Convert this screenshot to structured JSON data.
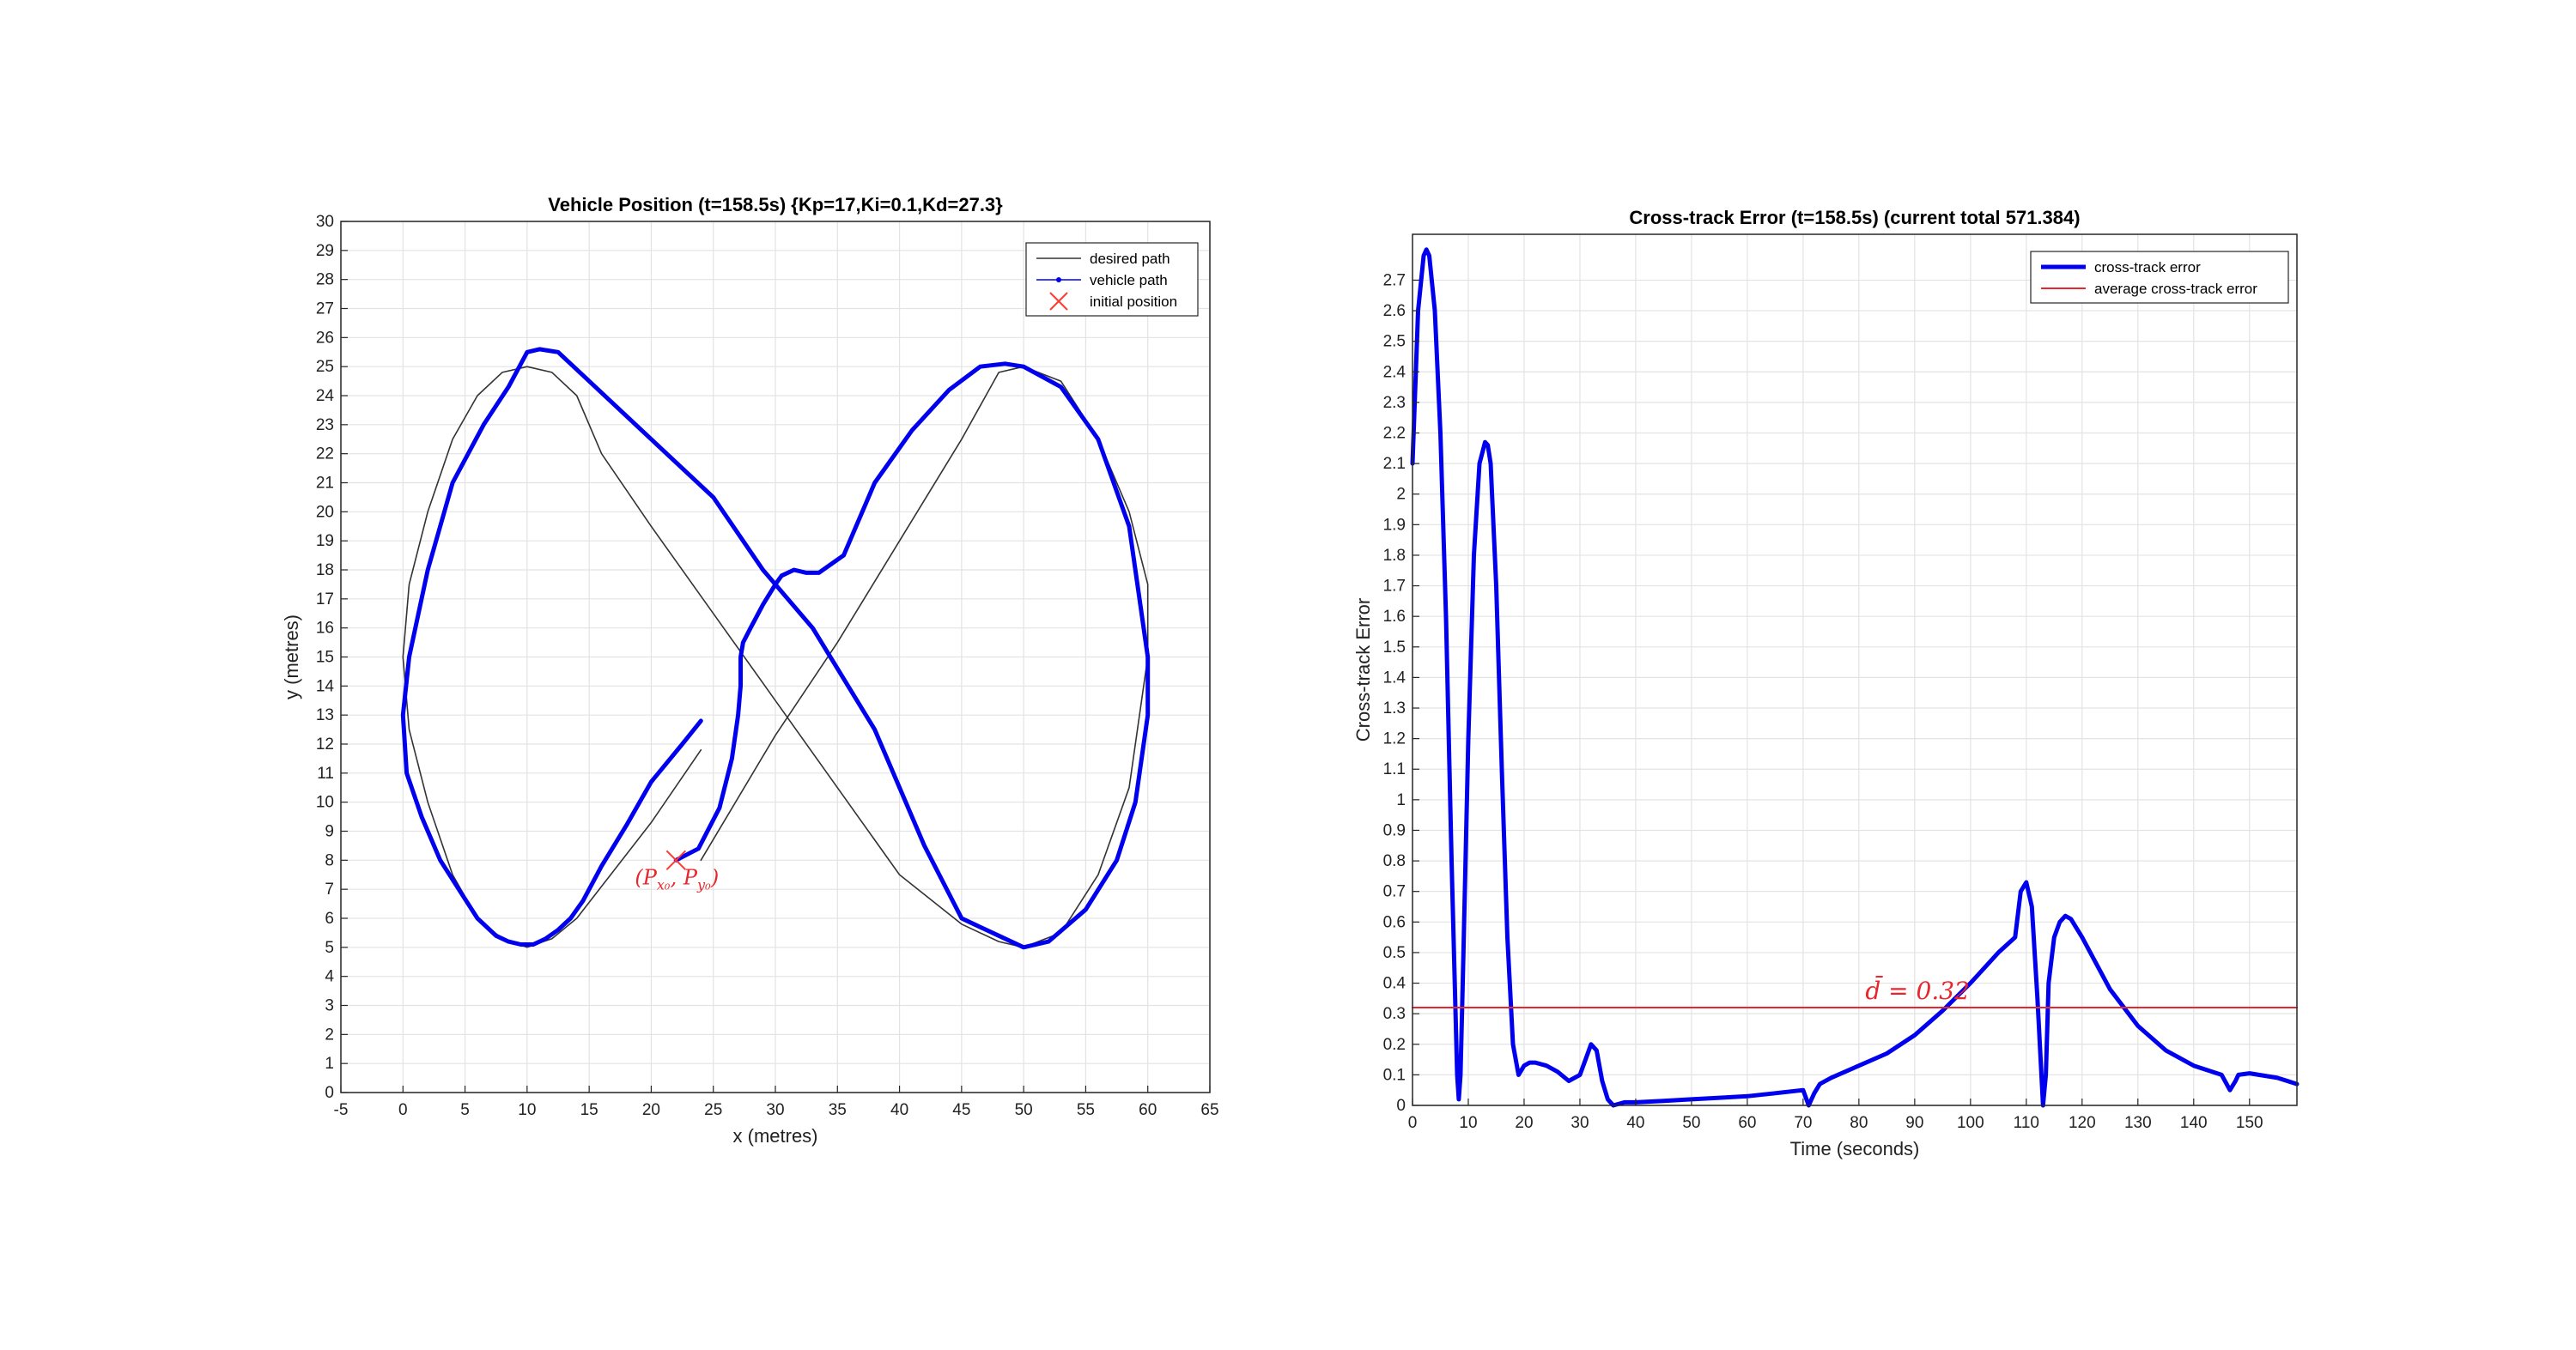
{
  "colors": {
    "desired": "#333333",
    "vehicle": "#0000ee",
    "initial": "#ff3b30",
    "average": "#e8262b",
    "grid": "#e3e3e3",
    "axis": "#262626"
  },
  "chart_data": [
    {
      "type": "line",
      "title": "Vehicle Position (t=158.5s) {Kp=17,Ki=0.1,Kd=27.3}",
      "xlabel": "x (metres)",
      "ylabel": "y (metres)",
      "xlim": [
        -5,
        65
      ],
      "ylim": [
        0,
        30
      ],
      "xticks": [
        -5,
        0,
        5,
        10,
        15,
        20,
        25,
        30,
        35,
        40,
        45,
        50,
        55,
        60,
        65
      ],
      "yticks": [
        0,
        1,
        2,
        3,
        4,
        5,
        6,
        7,
        8,
        9,
        10,
        11,
        12,
        13,
        14,
        15,
        16,
        17,
        18,
        19,
        20,
        21,
        22,
        23,
        24,
        25,
        26,
        27,
        28,
        29,
        30
      ],
      "grid": true,
      "legend_position": "top-right",
      "legend": [
        "desired path",
        "vehicle path",
        "initial position"
      ],
      "annotation": "(P_x0, P_y0)",
      "series": [
        {
          "name": "desired path",
          "style": "thin-line",
          "x": [
            24,
            20,
            16,
            14,
            12,
            10,
            8,
            6,
            4,
            2,
            0.5,
            0,
            0.5,
            2,
            4,
            6,
            8,
            10,
            12,
            14,
            16,
            20,
            25,
            30,
            35,
            40,
            45,
            48,
            50,
            53,
            56,
            58.5,
            60,
            60,
            58.5,
            56,
            53,
            50,
            48,
            45,
            40,
            35,
            30,
            24
          ],
          "y": [
            11.8,
            9.3,
            7.1,
            6.0,
            5.3,
            5.0,
            5.3,
            6.0,
            7.5,
            10.0,
            12.5,
            15.0,
            17.5,
            20.0,
            22.5,
            24.0,
            24.8,
            25.0,
            24.8,
            24.0,
            22.0,
            19.5,
            16.5,
            13.5,
            10.5,
            7.5,
            5.8,
            5.2,
            5.0,
            5.5,
            7.5,
            10.5,
            15.0,
            17.5,
            20.0,
            22.5,
            24.5,
            25.0,
            24.8,
            22.5,
            19.0,
            15.5,
            12.3,
            8.0
          ]
        },
        {
          "name": "vehicle path",
          "style": "thick-line",
          "x": [
            22,
            23.8,
            25.5,
            26.5,
            27,
            27.2,
            27.2,
            27.4,
            28,
            29,
            30,
            30.5,
            31.5,
            32.5,
            33.5,
            34.5,
            35.5,
            38,
            41,
            44,
            46.5,
            48.5,
            50,
            53,
            56,
            58.5,
            60,
            60,
            59,
            57.5,
            55,
            52,
            50,
            48,
            46,
            45,
            42,
            38,
            33,
            29,
            25,
            20,
            15,
            12.5,
            11,
            10,
            8.5,
            6.5,
            4,
            2,
            0.5,
            0,
            0.3,
            1.5,
            3,
            4.5,
            6,
            7.5,
            8.5,
            9.5,
            10.5,
            11.5,
            12.5,
            13.5,
            14,
            14.5,
            16,
            18,
            20,
            22.5,
            24
          ],
          "y": [
            8,
            8.4,
            9.8,
            11.5,
            13.0,
            14.0,
            15.0,
            15.5,
            16.0,
            16.8,
            17.5,
            17.8,
            18.0,
            17.9,
            17.9,
            18.2,
            18.5,
            21.0,
            22.8,
            24.2,
            25.0,
            25.1,
            25.0,
            24.3,
            22.5,
            19.5,
            15.0,
            13.0,
            10.0,
            8.0,
            6.3,
            5.2,
            5.0,
            5.4,
            5.8,
            6.0,
            8.5,
            12.5,
            16.0,
            18.0,
            20.5,
            22.5,
            24.5,
            25.5,
            25.6,
            25.5,
            24.3,
            23.0,
            21.0,
            18.0,
            15.0,
            13.0,
            11.0,
            9.5,
            8.0,
            7.0,
            6.0,
            5.4,
            5.2,
            5.1,
            5.1,
            5.3,
            5.6,
            6.0,
            6.3,
            6.6,
            7.8,
            9.2,
            10.7,
            12.0,
            12.8
          ]
        },
        {
          "name": "initial position",
          "style": "x-marker",
          "x": [
            22
          ],
          "y": [
            8
          ]
        }
      ]
    },
    {
      "type": "line",
      "title": "Cross-track Error (t=158.5s) (current total 571.384)",
      "xlabel": "Time (seconds)",
      "ylabel": "Cross-track Error",
      "xlim": [
        0,
        158.5
      ],
      "ylim": [
        0,
        2.85
      ],
      "xticks": [
        0,
        10,
        20,
        30,
        40,
        50,
        60,
        70,
        80,
        90,
        100,
        110,
        120,
        130,
        140,
        150
      ],
      "yticks": [
        0,
        0.1,
        0.2,
        0.3,
        0.4,
        0.5,
        0.6,
        0.7,
        0.8,
        0.9,
        1,
        1.1,
        1.2,
        1.3,
        1.4,
        1.5,
        1.6,
        1.7,
        1.8,
        1.9,
        2,
        2.1,
        2.2,
        2.3,
        2.4,
        2.5,
        2.6,
        2.7
      ],
      "grid": true,
      "legend_position": "top-right",
      "legend": [
        "cross-track error",
        "average cross-track error"
      ],
      "annotation": "d̄ = 0.32",
      "average_value": 0.32,
      "series": [
        {
          "name": "cross-track error",
          "style": "thick-line",
          "x": [
            0,
            1,
            2,
            2.5,
            3,
            4,
            5,
            6,
            7,
            8,
            8.3,
            8.6,
            9,
            10,
            11,
            12,
            13,
            13.5,
            14,
            15,
            16,
            17,
            18,
            19,
            20,
            21,
            22,
            24,
            26,
            28,
            30,
            31,
            32,
            33,
            34,
            35,
            36,
            38,
            40,
            45,
            50,
            55,
            60,
            65,
            70,
            71,
            72,
            73,
            75,
            80,
            85,
            90,
            95,
            100,
            105,
            108,
            109,
            110,
            111,
            112,
            113,
            113.5,
            114,
            115,
            116,
            117,
            118,
            120,
            125,
            130,
            135,
            140,
            145,
            146.5,
            147.5,
            148,
            150,
            155,
            158.5
          ],
          "y": [
            2.1,
            2.6,
            2.78,
            2.8,
            2.78,
            2.6,
            2.2,
            1.6,
            0.8,
            0.1,
            0.02,
            0.1,
            0.4,
            1.2,
            1.8,
            2.1,
            2.17,
            2.16,
            2.1,
            1.7,
            1.1,
            0.55,
            0.2,
            0.1,
            0.13,
            0.14,
            0.14,
            0.13,
            0.11,
            0.08,
            0.1,
            0.15,
            0.2,
            0.18,
            0.08,
            0.02,
            0.0,
            0.01,
            0.01,
            0.015,
            0.02,
            0.025,
            0.03,
            0.04,
            0.05,
            0.0,
            0.04,
            0.07,
            0.09,
            0.13,
            0.17,
            0.23,
            0.31,
            0.4,
            0.5,
            0.55,
            0.7,
            0.73,
            0.65,
            0.35,
            0.0,
            0.1,
            0.4,
            0.55,
            0.6,
            0.62,
            0.61,
            0.55,
            0.38,
            0.26,
            0.18,
            0.13,
            0.1,
            0.05,
            0.08,
            0.1,
            0.105,
            0.09,
            0.07
          ]
        },
        {
          "name": "average cross-track error",
          "style": "thin-line",
          "x": [
            0,
            158.5
          ],
          "y": [
            0.32,
            0.32
          ]
        }
      ]
    }
  ]
}
